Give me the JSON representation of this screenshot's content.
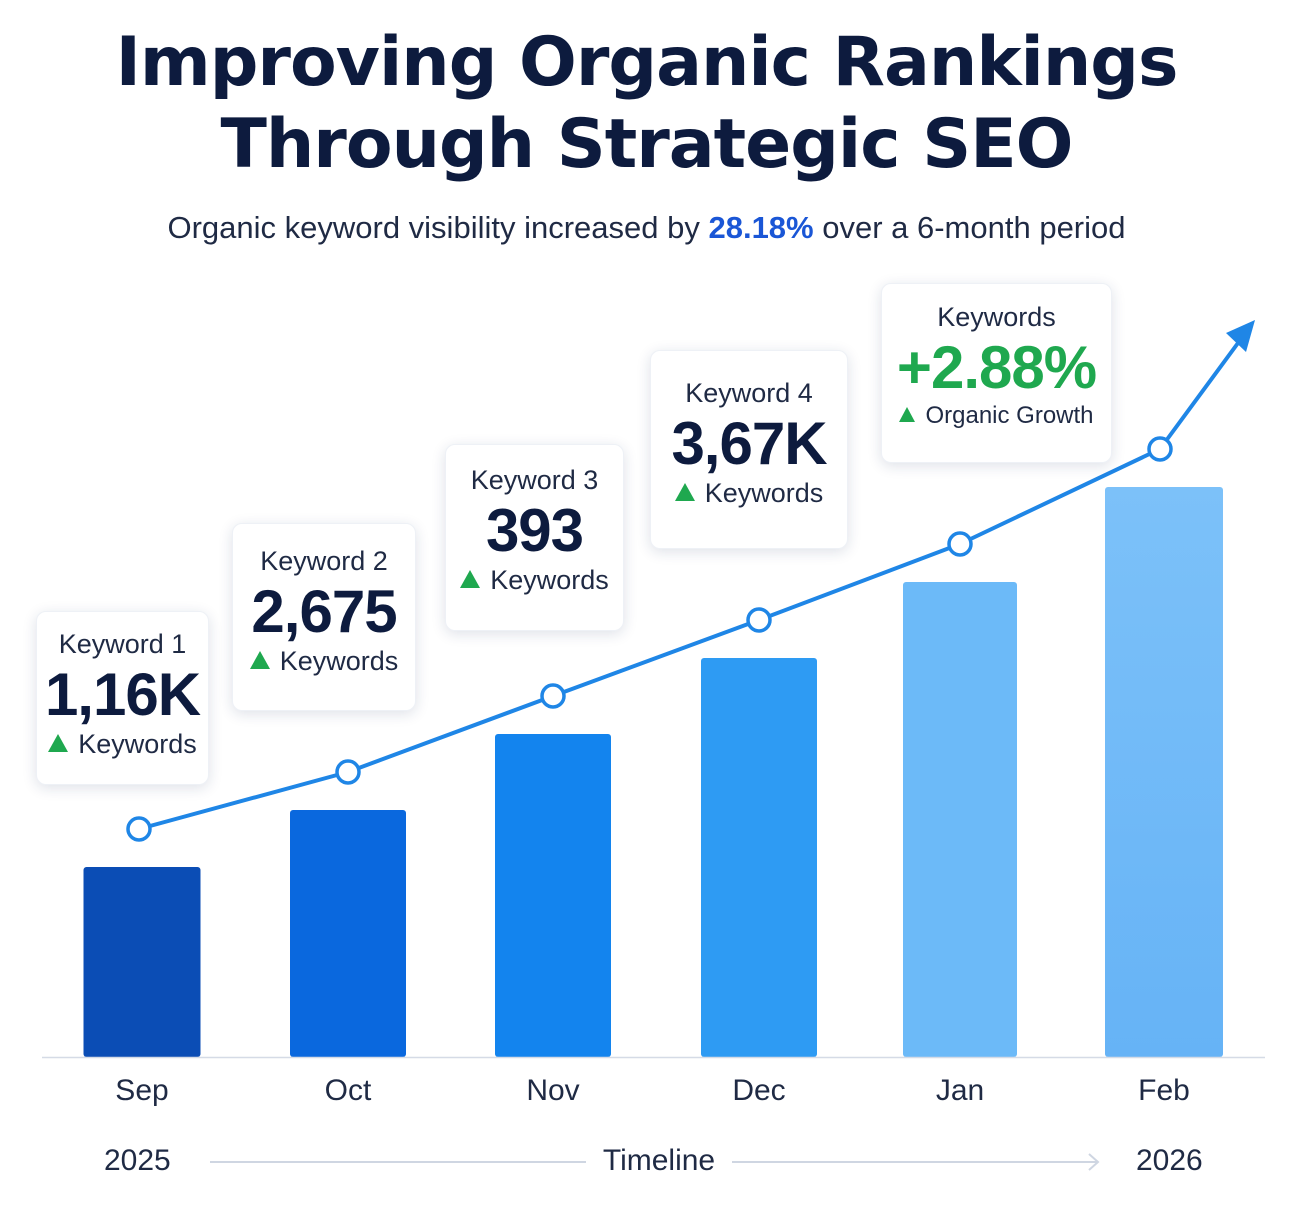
{
  "title": {
    "line1": "Improving Organic Rankings",
    "line2": "Through Strategic SEO"
  },
  "subtitle": {
    "before": "Organic keyword visibility increased by ",
    "highlight": "28.18%",
    "after": " over a 6-month period"
  },
  "cards": [
    {
      "label": "Keyword 1",
      "value": "1,16K",
      "sub": "Keywords"
    },
    {
      "label": "Keyword 2",
      "value": "2,675",
      "sub": "Keywords"
    },
    {
      "label": "Keyword 3",
      "value": "393",
      "sub": "Keywords"
    },
    {
      "label": "Keyword 4",
      "value": "3,67K",
      "sub": "Keywords"
    },
    {
      "label": "Keywords",
      "value": "+2.88%",
      "sub": "Organic Growth"
    }
  ],
  "timeline": {
    "start_year": "2025",
    "label": "Timeline",
    "end_year": "2026"
  },
  "colors": {
    "bars": [
      "#0b4db5",
      "#0a68de",
      "#1384ee",
      "#2e9bf3",
      "#6cbaf8",
      "#76bdf8"
    ],
    "line": "#1f86e6",
    "positive": "#1fa84f",
    "highlight": "#1a56d6",
    "title": "#0d1b3e"
  },
  "chart_data": {
    "type": "bar",
    "categories": [
      "Sep",
      "Oct",
      "Nov",
      "Dec",
      "Jan",
      "Feb"
    ],
    "series": [
      {
        "type": "bar",
        "values": [
          1.0,
          1.3,
          1.7,
          2.1,
          2.5,
          3.0
        ]
      },
      {
        "type": "line",
        "values": [
          1.2,
          1.5,
          1.9,
          2.3,
          2.7,
          3.2
        ],
        "arrow": true
      }
    ],
    "grid": false,
    "y_axis_visible": false
  }
}
